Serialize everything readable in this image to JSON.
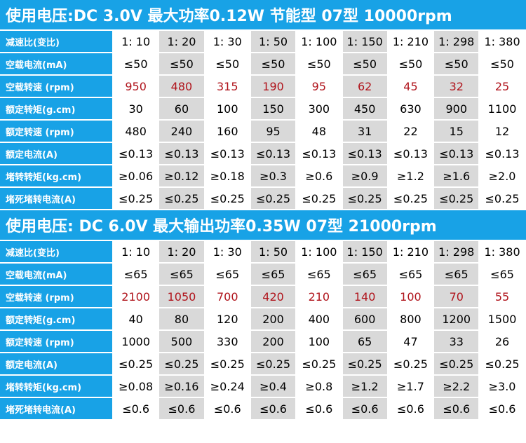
{
  "tables": [
    {
      "title": "使用电压:DC 3.0V  最大功率0.12W  节能型  07型  10000rpm",
      "rows": [
        {
          "label": "减速比(变比)",
          "color": "#000000",
          "cells": [
            "1: 10",
            "1: 20",
            "1: 30",
            "1: 50",
            "1: 100",
            "1: 150",
            "1: 210",
            "1: 298",
            "1: 380"
          ]
        },
        {
          "label": "空载电流(mA)",
          "color": "#000000",
          "cells": [
            "≤50",
            "≤50",
            "≤50",
            "≤50",
            "≤50",
            "≤50",
            "≤50",
            "≤50",
            "≤50"
          ]
        },
        {
          "label": "空载转速 (rpm)",
          "color": "#b0141c",
          "cells": [
            "950",
            "480",
            "315",
            "190",
            "95",
            "62",
            "45",
            "32",
            "25"
          ]
        },
        {
          "label": "额定转矩(g.cm)",
          "color": "#000000",
          "cells": [
            "30",
            "60",
            "100",
            "150",
            "300",
            "450",
            "630",
            "900",
            "1100"
          ]
        },
        {
          "label": "额定转速 (rpm)",
          "color": "#000000",
          "cells": [
            "480",
            "240",
            "160",
            "95",
            "48",
            "31",
            "22",
            "15",
            "12"
          ]
        },
        {
          "label": "额定电流(A)",
          "color": "#000000",
          "cells": [
            "≤0.13",
            "≤0.13",
            "≤0.13",
            "≤0.13",
            "≤0.13",
            "≤0.13",
            "≤0.13",
            "≤0.13",
            "≤0.13"
          ]
        },
        {
          "label": "堵转转矩(kg.cm)",
          "color": "#000000",
          "cells": [
            "≥0.06",
            "≥0.12",
            "≥0.18",
            "≥0.3",
            "≥0.6",
            "≥0.9",
            "≥1.2",
            "≥1.6",
            "≥2.0"
          ]
        },
        {
          "label": "堵死堵转电流(A)",
          "color": "#000000",
          "cells": [
            "≤0.25",
            "≤0.25",
            "≤0.25",
            "≤0.25",
            "≤0.25",
            "≤0.25",
            "≤0.25",
            "≤0.25",
            "≤0.25"
          ]
        }
      ]
    },
    {
      "title": "使用电压: DC 6.0V  最大输出功率0.35W  07型  21000rpm",
      "rows": [
        {
          "label": "减速比(变比)",
          "color": "#000000",
          "cells": [
            "1: 10",
            "1: 20",
            "1: 30",
            "1: 50",
            "1: 100",
            "1: 150",
            "1: 210",
            "1: 298",
            "1: 380"
          ]
        },
        {
          "label": "空载电流(mA)",
          "color": "#000000",
          "cells": [
            "≤65",
            "≤65",
            "≤65",
            "≤65",
            "≤65",
            "≤65",
            "≤65",
            "≤65",
            "≤65"
          ]
        },
        {
          "label": "空载转速 (rpm)",
          "color": "#b0141c",
          "cells": [
            "2100",
            "1050",
            "700",
            "420",
            "210",
            "140",
            "100",
            "70",
            "55"
          ]
        },
        {
          "label": "额定转矩(g.cm)",
          "color": "#000000",
          "cells": [
            "40",
            "80",
            "120",
            "200",
            "400",
            "600",
            "800",
            "1200",
            "1500"
          ]
        },
        {
          "label": "额定转速 (rpm)",
          "color": "#000000",
          "cells": [
            "1000",
            "500",
            "330",
            "200",
            "100",
            "65",
            "47",
            "33",
            "26"
          ]
        },
        {
          "label": "额定电流(A)",
          "color": "#000000",
          "cells": [
            "≤0.25",
            "≤0.25",
            "≤0.25",
            "≤0.25",
            "≤0.25",
            "≤0.25",
            "≤0.25",
            "≤0.25",
            "≤0.25"
          ]
        },
        {
          "label": "堵转转矩(kg.cm)",
          "color": "#000000",
          "cells": [
            "≥0.08",
            "≥0.16",
            "≥0.24",
            "≥0.4",
            "≥0.8",
            "≥1.2",
            "≥1.7",
            "≥2.2",
            "≥3.0"
          ]
        },
        {
          "label": "堵死堵转电流(A)",
          "color": "#000000",
          "cells": [
            "≤0.6",
            "≤0.6",
            "≤0.6",
            "≤0.6",
            "≤0.6",
            "≤0.6",
            "≤0.6",
            "≤0.6",
            "≤0.6"
          ]
        }
      ]
    }
  ],
  "header_color": "#18a2e6",
  "shade_color": "#d9d9d9",
  "shaded_columns": [
    1,
    3,
    5,
    7
  ]
}
